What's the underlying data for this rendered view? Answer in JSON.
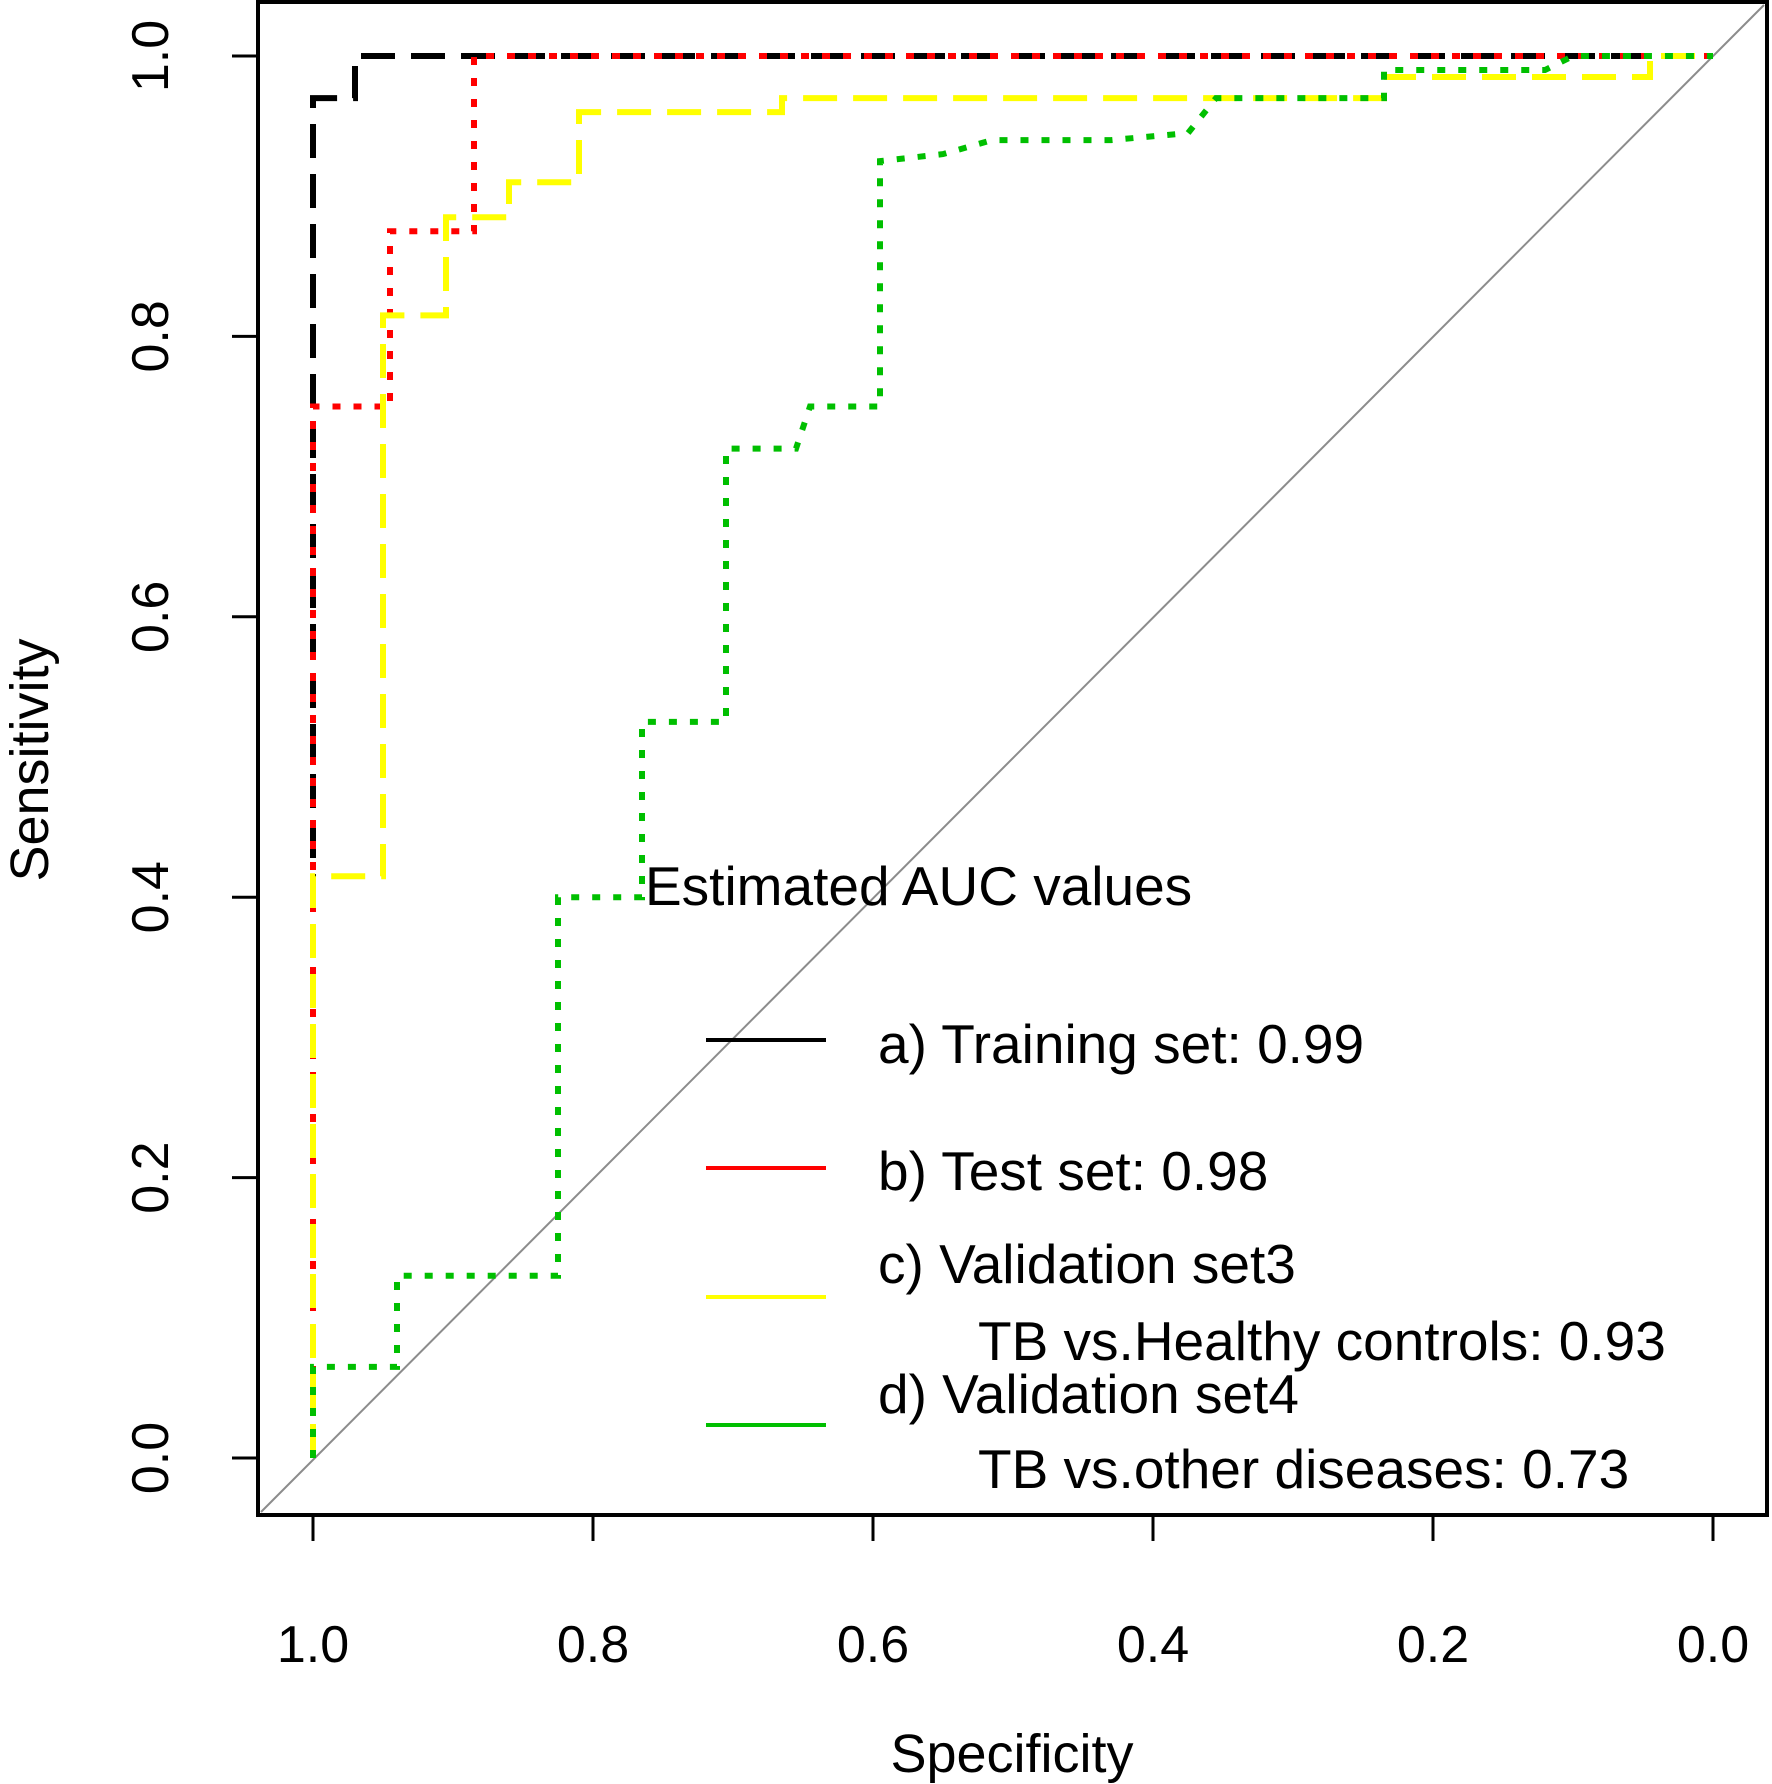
{
  "chart_data": {
    "type": "line",
    "subtype": "roc",
    "xlabel": "Specificity",
    "ylabel": "Sensitivity",
    "xlim": [
      1.0,
      0.0
    ],
    "ylim": [
      0.0,
      1.0
    ],
    "x_reversed": true,
    "xticks": [
      1.0,
      0.8,
      0.6,
      0.4,
      0.2,
      0.0
    ],
    "yticks": [
      0.0,
      0.2,
      0.4,
      0.6,
      0.8,
      1.0
    ],
    "xtick_labels": [
      "1.0",
      "0.8",
      "0.6",
      "0.4",
      "0.2",
      "0.0"
    ],
    "ytick_labels": [
      "0.0",
      "0.2",
      "0.4",
      "0.6",
      "0.8",
      "1.0"
    ],
    "grid": false,
    "reference_line": {
      "from": [
        1.0,
        0.0
      ],
      "to": [
        0.0,
        1.0
      ],
      "color": "#8c8c8c"
    },
    "legend": {
      "title": "Estimated AUC values",
      "position": "bottom-right",
      "entries": [
        {
          "lines": [
            "a) Training set: 0.99"
          ],
          "color": "#000000"
        },
        {
          "lines": [
            "b) Test set: 0.98"
          ],
          "color": "#ff0000"
        },
        {
          "lines": [
            "c) Validation set3",
            "TB vs.Healthy controls: 0.93"
          ],
          "color": "#ffff00"
        },
        {
          "lines": [
            "d) Validation set4",
            "TB vs.other diseases: 0.73"
          ],
          "color": "#00bf00"
        }
      ]
    },
    "series": [
      {
        "name": "a) Training set",
        "auc": 0.99,
        "color": "#000000",
        "dash": "long-dash",
        "points": [
          [
            1.0,
            0.0
          ],
          [
            1.0,
            0.97
          ],
          [
            0.97,
            0.97
          ],
          [
            0.97,
            1.0
          ],
          [
            0.0,
            1.0
          ]
        ]
      },
      {
        "name": "b) Test set",
        "auc": 0.98,
        "color": "#ff0000",
        "dash": "dot",
        "points": [
          [
            1.0,
            0.0
          ],
          [
            1.0,
            0.75
          ],
          [
            0.945,
            0.75
          ],
          [
            0.945,
            0.875
          ],
          [
            0.885,
            0.875
          ],
          [
            0.885,
            1.0
          ],
          [
            0.0,
            1.0
          ]
        ]
      },
      {
        "name": "c) Validation set3 TB vs.Healthy controls",
        "auc": 0.93,
        "color": "#ffff00",
        "dash": "long-dash",
        "points": [
          [
            1.0,
            0.0
          ],
          [
            1.0,
            0.415
          ],
          [
            0.95,
            0.415
          ],
          [
            0.95,
            0.815
          ],
          [
            0.905,
            0.815
          ],
          [
            0.905,
            0.885
          ],
          [
            0.86,
            0.885
          ],
          [
            0.86,
            0.91
          ],
          [
            0.81,
            0.91
          ],
          [
            0.81,
            0.96
          ],
          [
            0.665,
            0.96
          ],
          [
            0.665,
            0.97
          ],
          [
            0.235,
            0.97
          ],
          [
            0.235,
            0.985
          ],
          [
            0.045,
            0.985
          ],
          [
            0.045,
            1.0
          ],
          [
            0.0,
            1.0
          ]
        ]
      },
      {
        "name": "d) Validation set4 TB vs.other diseases",
        "auc": 0.73,
        "color": "#00bf00",
        "dash": "dot",
        "points": [
          [
            1.0,
            0.0
          ],
          [
            1.0,
            0.065
          ],
          [
            0.94,
            0.065
          ],
          [
            0.94,
            0.13
          ],
          [
            0.825,
            0.13
          ],
          [
            0.825,
            0.4
          ],
          [
            0.765,
            0.4
          ],
          [
            0.765,
            0.525
          ],
          [
            0.705,
            0.525
          ],
          [
            0.705,
            0.72
          ],
          [
            0.655,
            0.72
          ],
          [
            0.645,
            0.75
          ],
          [
            0.595,
            0.75
          ],
          [
            0.595,
            0.925
          ],
          [
            0.55,
            0.93
          ],
          [
            0.515,
            0.94
          ],
          [
            0.43,
            0.94
          ],
          [
            0.375,
            0.945
          ],
          [
            0.355,
            0.97
          ],
          [
            0.235,
            0.97
          ],
          [
            0.235,
            0.99
          ],
          [
            0.12,
            0.99
          ],
          [
            0.1,
            1.0
          ],
          [
            0.0,
            1.0
          ]
        ]
      }
    ]
  }
}
